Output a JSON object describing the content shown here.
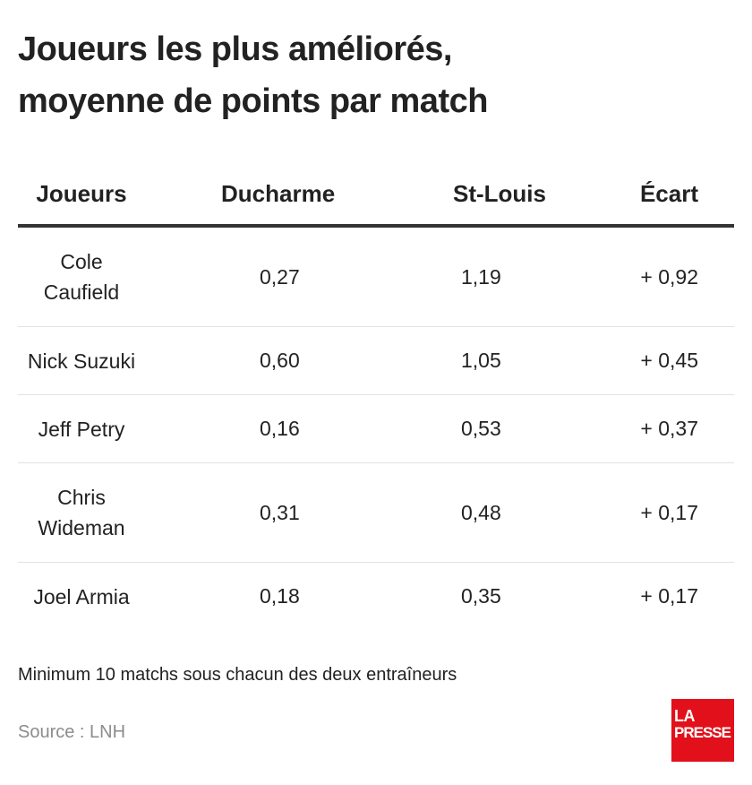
{
  "title": {
    "line1": "Joueurs les plus améliorés,",
    "line2": "moyenne de points par match"
  },
  "chart_data": {
    "type": "table",
    "columns": [
      "Joueurs",
      "Ducharme",
      "St-Louis",
      "Écart"
    ],
    "rows": [
      {
        "name_line1": "Cole",
        "name_line2": "Caufield",
        "ducharme": "0,27",
        "st_louis": "1,19",
        "ecart": "+ 0,92"
      },
      {
        "name_line1": "Nick Suzuki",
        "name_line2": "",
        "ducharme": "0,60",
        "st_louis": "1,05",
        "ecart": "+ 0,45"
      },
      {
        "name_line1": "Jeff Petry",
        "name_line2": "",
        "ducharme": "0,16",
        "st_louis": "0,53",
        "ecart": "+ 0,37"
      },
      {
        "name_line1": "Chris",
        "name_line2": "Wideman",
        "ducharme": "0,31",
        "st_louis": "0,48",
        "ecart": "+ 0,17"
      },
      {
        "name_line1": "Joel Armia",
        "name_line2": "",
        "ducharme": "0,18",
        "st_louis": "0,35",
        "ecart": "+ 0,17"
      }
    ]
  },
  "note": "Minimum 10 matchs sous chacun des deux entraîneurs",
  "source": "Source : LNH",
  "logo": {
    "line1": "LA",
    "line2": "PRESSE",
    "color": "#e2101a"
  }
}
